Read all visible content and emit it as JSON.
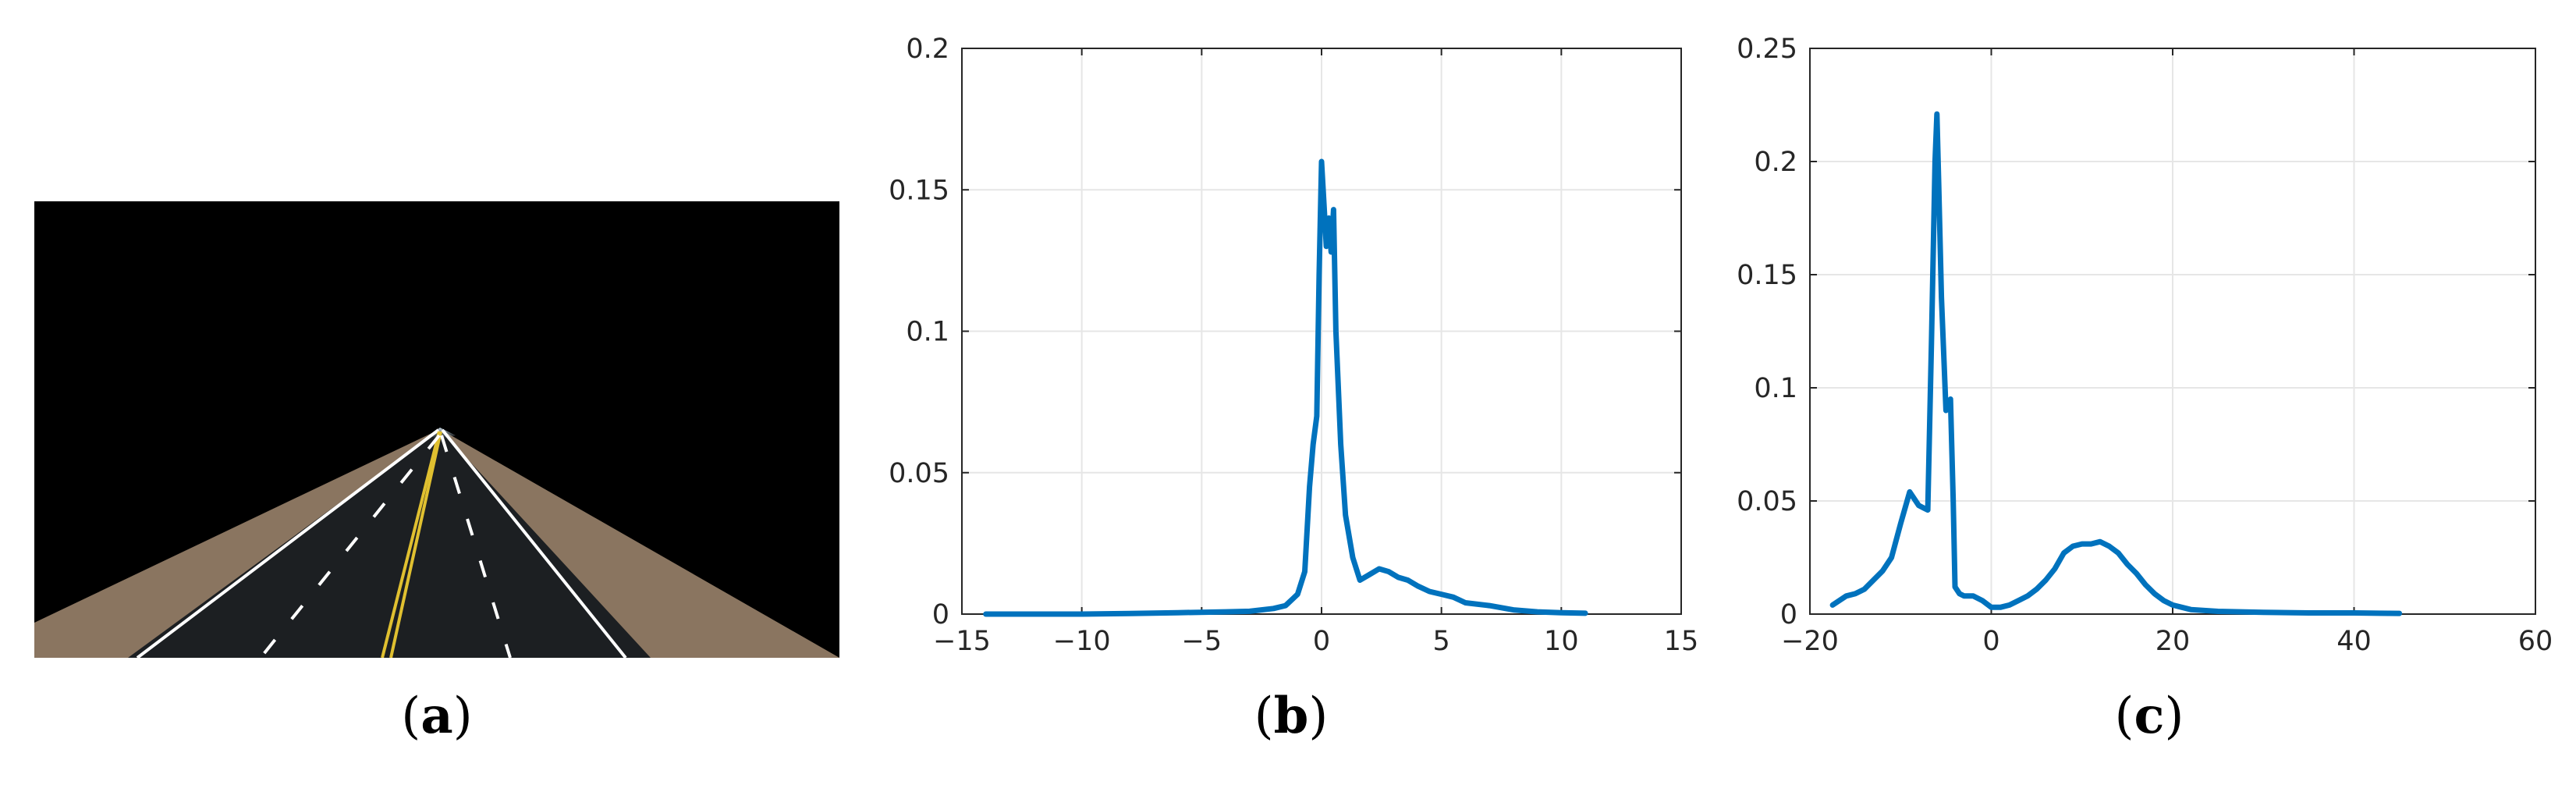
{
  "panels": {
    "a": {
      "label": "a"
    },
    "b": {
      "label": "b"
    },
    "c": {
      "label": "c"
    }
  },
  "scene": {
    "sky_color": "#000000",
    "asphalt_color": "#1c1f22",
    "shoulder_color": "#8a7560",
    "yellow_line_color": "#e0c030",
    "white_line_color": "#ffffff"
  },
  "chart_data": [
    {
      "id": "b",
      "type": "line",
      "color": "#0072bd",
      "grid": true,
      "xlim": [
        -15,
        15
      ],
      "ylim": [
        0,
        0.2
      ],
      "xticks": [
        -15,
        -10,
        -5,
        0,
        5,
        10,
        15
      ],
      "xtick_labels": [
        "−15",
        "−10",
        "−5",
        "0",
        "5",
        "10",
        "15"
      ],
      "yticks": [
        0,
        0.05,
        0.1,
        0.15,
        0.2
      ],
      "ytick_labels": [
        "0",
        "0.05",
        "0.1",
        "0.15",
        "0.2"
      ],
      "series": [
        {
          "x": [
            -14,
            -12,
            -10,
            -8,
            -6,
            -4,
            -3,
            -2,
            -1.5,
            -1,
            -0.7,
            -0.5,
            -0.35,
            -0.2,
            -0.1,
            0,
            0.1,
            0.2,
            0.3,
            0.4,
            0.5,
            0.6,
            0.8,
            1.0,
            1.3,
            1.6,
            2.0,
            2.4,
            2.8,
            3.2,
            3.6,
            4.0,
            4.5,
            5.0,
            5.5,
            6,
            7,
            8,
            9,
            10,
            11
          ],
          "y": [
            0,
            0,
            0,
            0.0002,
            0.0005,
            0.0008,
            0.001,
            0.002,
            0.003,
            0.007,
            0.015,
            0.045,
            0.06,
            0.07,
            0.12,
            0.16,
            0.145,
            0.13,
            0.14,
            0.128,
            0.143,
            0.1,
            0.06,
            0.035,
            0.02,
            0.012,
            0.014,
            0.016,
            0.015,
            0.013,
            0.012,
            0.01,
            0.008,
            0.007,
            0.006,
            0.004,
            0.003,
            0.0015,
            0.0008,
            0.0005,
            0.0003
          ]
        }
      ]
    },
    {
      "id": "c",
      "type": "line",
      "color": "#0072bd",
      "grid": true,
      "xlim": [
        -20,
        60
      ],
      "ylim": [
        0,
        0.25
      ],
      "xticks": [
        -20,
        0,
        20,
        40,
        60
      ],
      "xtick_labels": [
        "−20",
        "0",
        "20",
        "40",
        "60"
      ],
      "yticks": [
        0,
        0.05,
        0.1,
        0.15,
        0.2,
        0.25
      ],
      "ytick_labels": [
        "0",
        "0.05",
        "0.1",
        "0.15",
        "0.2",
        "0.25"
      ],
      "series": [
        {
          "x": [
            -17.5,
            -16,
            -15,
            -14,
            -13,
            -12,
            -11,
            -10,
            -9,
            -8,
            -7.5,
            -7,
            -6.6,
            -6.2,
            -6,
            -5.8,
            -5.5,
            -5.2,
            -5,
            -4.8,
            -4.5,
            -4.2,
            -4,
            -3.5,
            -3,
            -2,
            -1,
            0,
            1,
            2,
            3,
            4,
            5,
            6,
            7,
            8,
            9,
            10,
            11,
            12,
            13,
            14,
            15,
            16,
            17,
            18,
            19,
            20,
            22,
            25,
            30,
            35,
            40,
            45
          ],
          "y": [
            0.004,
            0.008,
            0.009,
            0.011,
            0.015,
            0.019,
            0.025,
            0.04,
            0.054,
            0.048,
            0.047,
            0.046,
            0.12,
            0.2,
            0.221,
            0.19,
            0.14,
            0.11,
            0.09,
            0.093,
            0.095,
            0.05,
            0.012,
            0.009,
            0.008,
            0.008,
            0.006,
            0.003,
            0.003,
            0.004,
            0.006,
            0.008,
            0.011,
            0.015,
            0.02,
            0.027,
            0.03,
            0.031,
            0.031,
            0.032,
            0.03,
            0.027,
            0.022,
            0.018,
            0.013,
            0.009,
            0.006,
            0.004,
            0.002,
            0.0012,
            0.0008,
            0.0005,
            0.0005,
            0.0003
          ]
        }
      ]
    }
  ]
}
